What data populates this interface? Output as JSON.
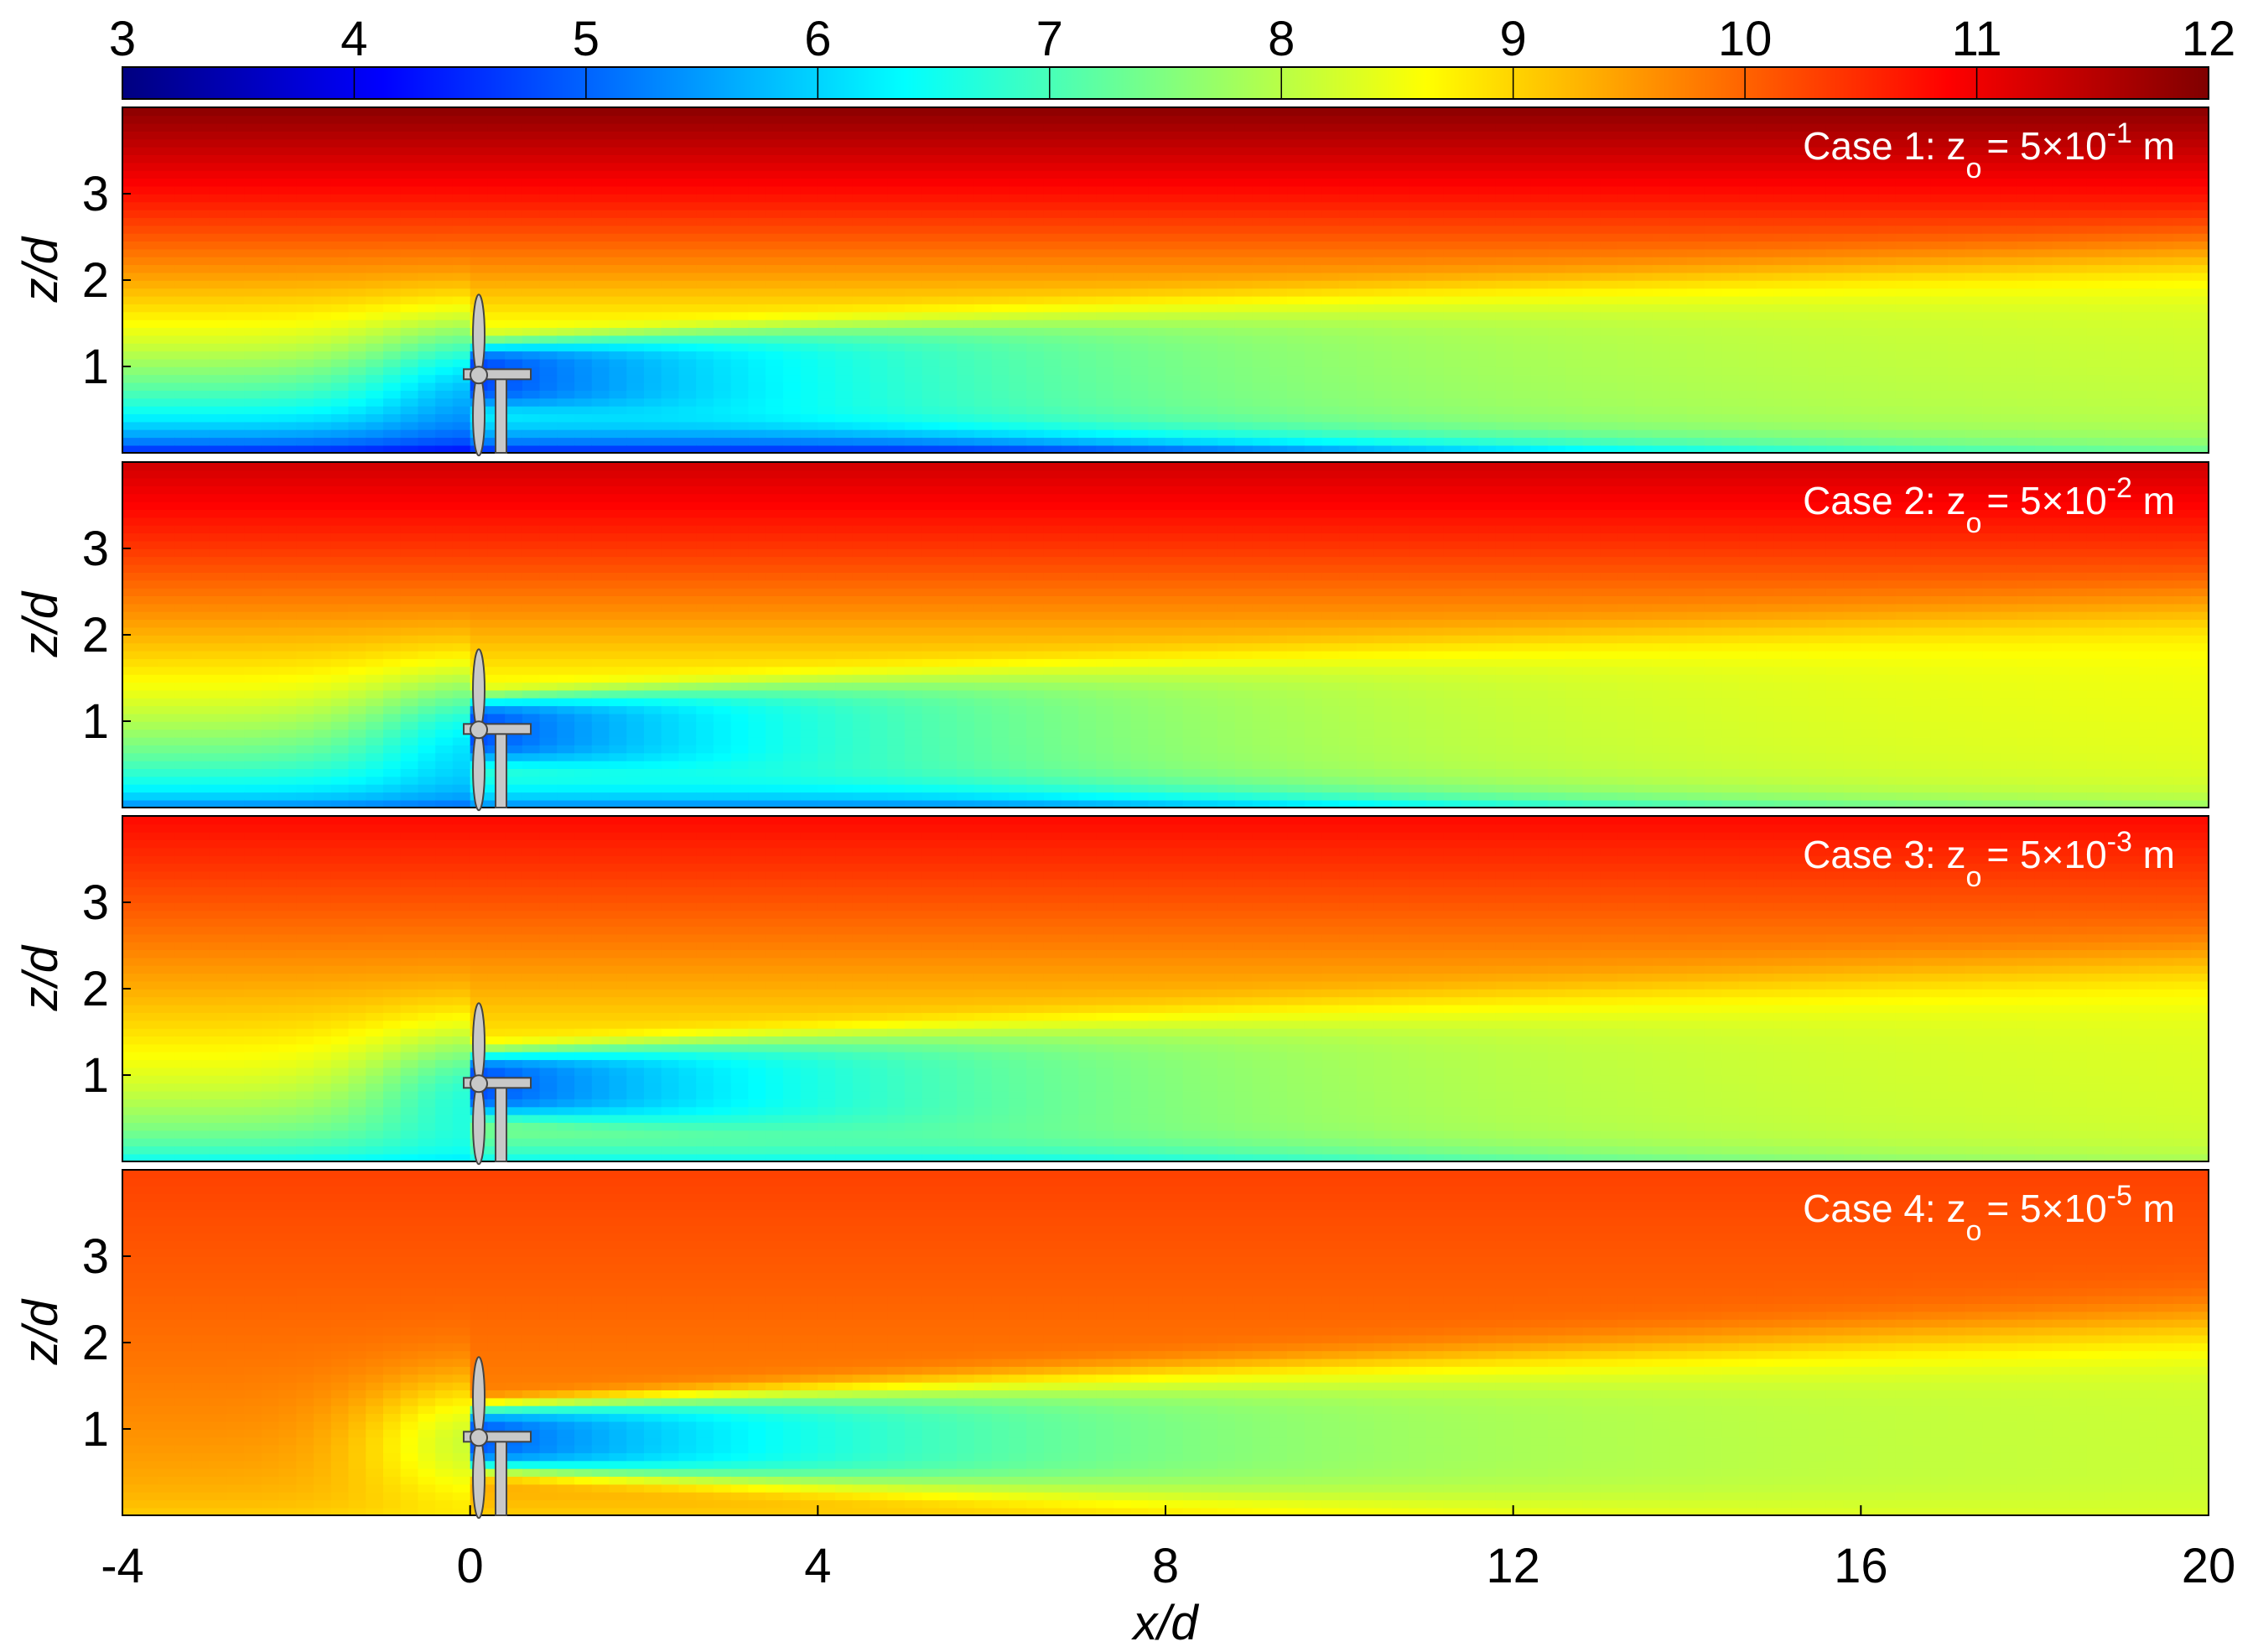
{
  "colorbar": {
    "ticks": [
      "3",
      "4",
      "5",
      "6",
      "7",
      "8",
      "9",
      "10",
      "11",
      "12"
    ],
    "range": [
      3,
      12
    ],
    "colormap": "jet"
  },
  "xaxis": {
    "label": "x/d",
    "ticks": [
      "-4",
      "0",
      "4",
      "8",
      "12",
      "16",
      "20"
    ],
    "range": [
      -4,
      20
    ]
  },
  "yaxis": {
    "label": "z/d",
    "ticks": [
      "1",
      "2",
      "3"
    ],
    "range": [
      0,
      4
    ]
  },
  "panels": [
    {
      "case_prefix": "Case 1: z",
      "sub": "o",
      "eq": "= 5×10",
      "exp": "-1",
      "unit": " m"
    },
    {
      "case_prefix": "Case 2: z",
      "sub": "o",
      "eq": "= 5×10",
      "exp": "-2",
      "unit": " m"
    },
    {
      "case_prefix": "Case 3: z",
      "sub": "o",
      "eq": "= 5×10",
      "exp": "-3",
      "unit": " m"
    },
    {
      "case_prefix": "Case 4: z",
      "sub": "o",
      "eq": "= 5×10",
      "exp": "-5",
      "unit": " m"
    }
  ],
  "chart_data": {
    "type": "heatmap",
    "title": "",
    "xlabel": "x/d",
    "ylabel": "z/d",
    "xlim": [
      -4,
      20
    ],
    "ylim": [
      0,
      4
    ],
    "colorbar_range": [
      3,
      12
    ],
    "turbine": {
      "x": 0.1,
      "hub_height": 0.9,
      "rotor_diameter": 1.0
    },
    "series": [
      {
        "name": "Case 1: zo = 5×10-1 m",
        "top_speed": 11.9,
        "hub_inflow": 8.6,
        "wake_min": 4.7,
        "far_wake_hub": 8.3,
        "surface": 4.0
      },
      {
        "name": "Case 2: zo = 5×10-2 m",
        "top_speed": 11.3,
        "hub_inflow": 9.0,
        "wake_min": 4.8,
        "far_wake_hub": 8.6,
        "surface": 5.0
      },
      {
        "name": "Case 3: zo = 5×10-3 m",
        "top_speed": 10.8,
        "hub_inflow": 9.3,
        "wake_min": 4.8,
        "far_wake_hub": 8.4,
        "surface": 6.2
      },
      {
        "name": "Case 4: zo = 5×10-5 m",
        "top_speed": 10.3,
        "hub_inflow": 9.5,
        "wake_min": 4.9,
        "far_wake_hub": 8.1,
        "surface": 9.0
      }
    ]
  }
}
